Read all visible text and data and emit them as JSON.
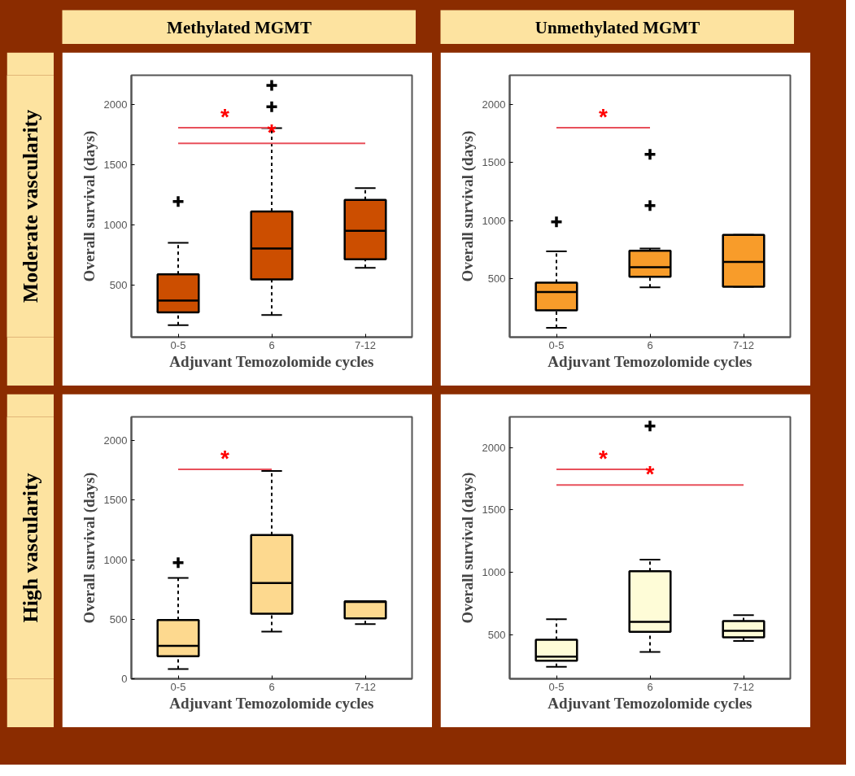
{
  "chart_data": [
    {
      "type": "box",
      "title": "Methylated MGMT",
      "xlabel": "Adjuvant Temozolomide cycles",
      "ylabel": "Overall survival (days)",
      "categories": [
        "0-5",
        "6",
        "7-12"
      ],
      "color": "#cc4e00",
      "ylim": [
        70,
        2240
      ],
      "yticks": [
        500,
        1000,
        1500,
        2000
      ],
      "grid": false,
      "boxes": [
        {
          "low": 170,
          "q1": 275,
          "median": 373,
          "q3": 590,
          "high": 852,
          "outliers": [
            1194
          ]
        },
        {
          "low": 253,
          "q1": 549,
          "median": 804,
          "q3": 1112,
          "high": 1802,
          "outliers": [
            1979,
            2155
          ]
        },
        {
          "low": 644,
          "q1": 715,
          "median": 951,
          "q3": 1208,
          "high": 1305
        }
      ],
      "annotations": [
        "Moderate vascularity",
        "*",
        "*"
      ]
    },
    {
      "type": "box",
      "title": "Unmethylated MGMT",
      "xlabel": "Adjuvant Temozolomide cycles",
      "ylabel": "Overall survival (days)",
      "categories": [
        "0-5",
        "6",
        "7-12"
      ],
      "color": "#f89c2a",
      "ylim": [
        0,
        2250
      ],
      "yticks": [
        500,
        1000,
        1500,
        2000
      ],
      "grid": false,
      "boxes": [
        {
          "low": 80,
          "q1": 231,
          "median": 388,
          "q3": 469,
          "high": 738,
          "outliers": [
            991
          ]
        },
        {
          "low": 428,
          "q1": 518,
          "median": 601,
          "q3": 742,
          "high": 762,
          "outliers": [
            1130,
            1571
          ]
        },
        {
          "low": 433,
          "q1": 433,
          "median": 647,
          "q3": 878,
          "high": 878
        }
      ],
      "annotations": [
        "*"
      ]
    },
    {
      "type": "box",
      "xlabel": "Adjuvant Temozolomide cycles",
      "ylabel": "Overall survival (days)",
      "categories": [
        "0-5",
        "6",
        "7-12"
      ],
      "color": "#fdd98f",
      "ylim": [
        0,
        2200
      ],
      "yticks": [
        0,
        500,
        1000,
        1500,
        2000
      ],
      "grid": false,
      "boxes": [
        {
          "low": 82,
          "q1": 189,
          "median": 276,
          "q3": 494,
          "high": 848,
          "outliers": [
            975
          ]
        },
        {
          "low": 396,
          "q1": 546,
          "median": 804,
          "q3": 1207,
          "high": 1745
        },
        {
          "low": 460,
          "q1": 507,
          "median": 645,
          "q3": 650,
          "high": 650
        }
      ],
      "annotations": [
        "High vascularity",
        "*"
      ]
    },
    {
      "type": "box",
      "xlabel": "Adjuvant Temozolomide cycles",
      "ylabel": "Overall survival (days)",
      "categories": [
        "0-5",
        "6",
        "7-12"
      ],
      "color": "#fefcd7",
      "ylim": [
        145,
        2245
      ],
      "yticks": [
        500,
        1000,
        1500,
        2000
      ],
      "grid": false,
      "boxes": [
        {
          "low": 242,
          "q1": 290,
          "median": 322,
          "q3": 458,
          "high": 623
        },
        {
          "low": 360,
          "q1": 521,
          "median": 602,
          "q3": 1008,
          "high": 1100,
          "outliers": [
            2172
          ]
        },
        {
          "low": 449,
          "q1": 477,
          "median": 530,
          "q3": 608,
          "high": 655
        }
      ],
      "annotations": [
        "*",
        "*"
      ]
    }
  ]
}
